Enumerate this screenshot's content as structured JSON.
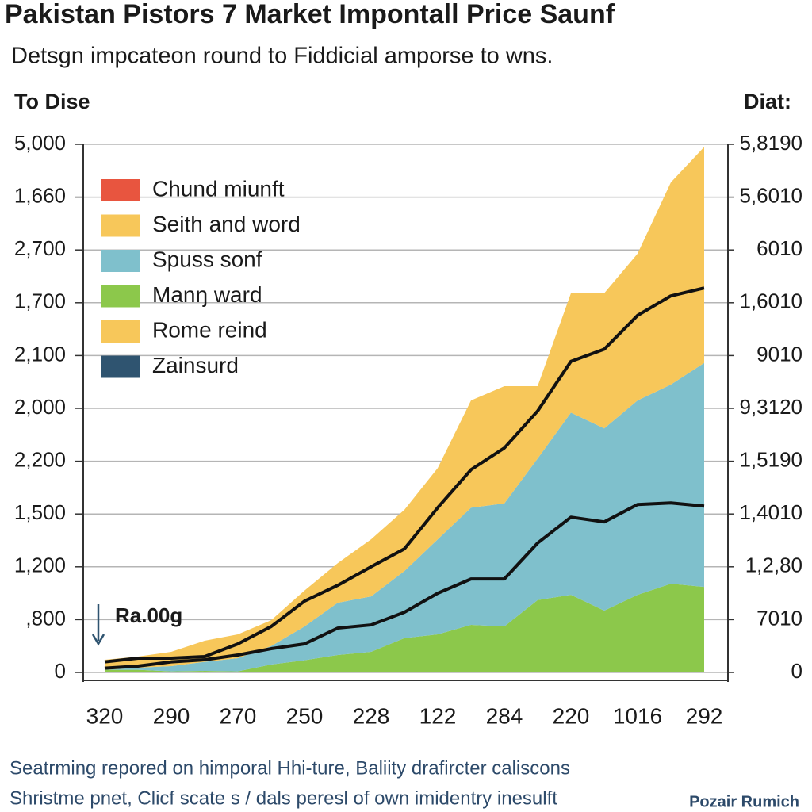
{
  "chart_data": {
    "type": "stacked_area",
    "title": "Pakistan Pistors 7 Market Impontall Price Saunf",
    "subtitle": "Detsgn impcateon round to Fiddicial amporse to wns.",
    "y_label": "To Dise",
    "y2_label": "Diat:",
    "annotation": "Ra.00g",
    "footnotes": [
      "Seatrming repored on himporal Hhi-ture, Baliity drafircter caliscons",
      "Shristme pnet, Clicf scate s / dals peresl of own imidentry inesulft"
    ],
    "source": "Pozair Rumich",
    "categories": [
      "320",
      null,
      "290",
      null,
      "270",
      null,
      "250",
      null,
      "228",
      null,
      "122",
      null,
      "284",
      null,
      "220",
      null,
      "1016",
      null,
      "292"
    ],
    "ylim": [
      0,
      10
    ],
    "yticks": [
      0,
      {
        "value": 1,
        "label": ",800"
      },
      {
        "value": 2,
        "label": "1,200"
      },
      {
        "value": 3,
        "label": "1,500"
      },
      {
        "value": 4,
        "label": "2,200"
      },
      {
        "value": 5,
        "label": "2,000"
      },
      {
        "value": 6,
        "label": "2,100"
      },
      {
        "value": 7,
        "label": "1,700"
      },
      {
        "value": 8,
        "label": "2,700"
      },
      {
        "value": 9,
        "label": "1,660"
      },
      {
        "value": 10,
        "label": "5,000"
      }
    ],
    "y2lim": [
      0,
      10
    ],
    "y2ticks": [
      0,
      {
        "value": 1,
        "label": "7010"
      },
      {
        "value": 2,
        "label": "1,2,80"
      },
      {
        "value": 3,
        "label": "1,4010"
      },
      {
        "value": 4,
        "label": "1,5190"
      },
      {
        "value": 5,
        "label": "9,3120"
      },
      {
        "value": 6,
        "label": "9010"
      },
      {
        "value": 7,
        "label": "1,6010"
      },
      {
        "value": 8,
        "label": "6010"
      },
      {
        "value": 9,
        "label": "5,6010"
      },
      {
        "value": 10,
        "label": "5,8190"
      }
    ],
    "grid": true,
    "line_color": "#111111",
    "series": [
      {
        "name": "Chund miunft",
        "color": "#e8553f",
        "kind": "line",
        "values": [
          0.2,
          0.27,
          0.27,
          0.3,
          0.54,
          0.87,
          1.35,
          1.65,
          2.0,
          2.34,
          3.12,
          3.84,
          4.25,
          4.95,
          5.89,
          6.12,
          6.76,
          7.13,
          7.28
        ]
      },
      {
        "name": "Seith and word",
        "color": "#f7c75a",
        "kind": "area",
        "values": [
          0.19,
          0.21,
          0.27,
          0.4,
          0.45,
          0.49,
          0.68,
          0.75,
          1.08,
          1.16,
          1.35,
          2.03,
          2.22,
          1.37,
          2.26,
          2.56,
          2.78,
          3.83,
          4.09
        ]
      },
      {
        "name": "Spuss sonf",
        "color": "#7fc0cc",
        "kind": "area",
        "values": [
          0,
          0.04,
          0.1,
          0.17,
          0.25,
          0.35,
          0.64,
          0.99,
          1.05,
          1.27,
          1.8,
          2.22,
          2.33,
          2.68,
          3.45,
          3.45,
          3.68,
          3.77,
          4.24
        ]
      },
      {
        "name": "Manŋ ward",
        "color": "#8cc84b",
        "kind": "area",
        "values": [
          0.05,
          0.05,
          0.02,
          0.03,
          0.02,
          0.15,
          0.23,
          0.33,
          0.39,
          0.65,
          0.72,
          0.9,
          0.87,
          1.37,
          1.47,
          1.17,
          1.47,
          1.68,
          1.62
        ]
      },
      {
        "name": "Rome reind",
        "color": "#f7c75a",
        "kind": "line",
        "values": [
          null,
          null,
          null,
          null,
          null,
          null,
          null,
          null,
          null,
          null,
          null,
          null,
          null,
          null,
          null,
          null,
          null,
          null,
          null
        ]
      },
      {
        "name": "Zainsurd",
        "color": "#2f5470",
        "kind": "line",
        "values": [
          0.08,
          0.12,
          0.2,
          0.24,
          0.33,
          0.45,
          0.54,
          0.84,
          0.9,
          1.14,
          1.5,
          1.77,
          1.77,
          2.45,
          2.94,
          2.85,
          3.18,
          3.21,
          3.15
        ]
      }
    ]
  }
}
